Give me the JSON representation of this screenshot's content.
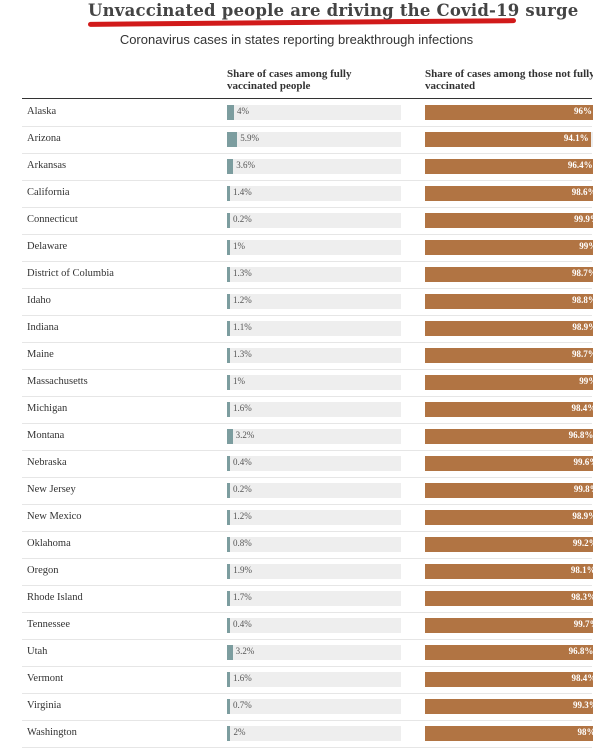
{
  "title": "Unvaccinated people are driving the Covid-19 surge",
  "subtitle": "Coronavirus cases in states reporting breakthrough infections",
  "colors": {
    "vaccinated": "#7c9d9f",
    "unvaccinated": "#b17443",
    "track": "#eeeeee",
    "title_underline": "#d11a1a"
  },
  "chart_data": {
    "type": "bar",
    "title": "Unvaccinated people are driving the Covid-19 surge",
    "subtitle": "Coronavirus cases in states reporting breakthrough infections",
    "orientation": "horizontal",
    "xlim": [
      0,
      100
    ],
    "categories": [
      "Alaska",
      "Arizona",
      "Arkansas",
      "California",
      "Connecticut",
      "Delaware",
      "District of Columbia",
      "Idaho",
      "Indiana",
      "Maine",
      "Massachusetts",
      "Michigan",
      "Montana",
      "Nebraska",
      "New Jersey",
      "New Mexico",
      "Oklahoma",
      "Oregon",
      "Rhode Island",
      "Tennessee",
      "Utah",
      "Vermont",
      "Virginia",
      "Washington"
    ],
    "series": [
      {
        "name": "Share of cases among fully vaccinated people",
        "values": [
          4,
          5.9,
          3.6,
          1.4,
          0.2,
          1,
          1.3,
          1.2,
          1.1,
          1.3,
          1,
          1.6,
          3.2,
          0.4,
          0.2,
          1.2,
          0.8,
          1.9,
          1.7,
          0.4,
          3.2,
          1.6,
          0.7,
          2
        ],
        "labels": [
          "4%",
          "5.9%",
          "3.6%",
          "1.4%",
          "0.2%",
          "1%",
          "1.3%",
          "1.2%",
          "1.1%",
          "1.3%",
          "1%",
          "1.6%",
          "3.2%",
          "0.4%",
          "0.2%",
          "1.2%",
          "0.8%",
          "1.9%",
          "1.7%",
          "0.4%",
          "3.2%",
          "1.6%",
          "0.7%",
          "2%"
        ]
      },
      {
        "name": "Share of cases among those not fully vaccinated",
        "values": [
          96,
          94.1,
          96.4,
          98.6,
          99.9,
          99,
          98.7,
          98.8,
          98.9,
          98.7,
          99,
          98.4,
          96.8,
          99.6,
          99.8,
          98.9,
          99.2,
          98.1,
          98.3,
          99.7,
          96.8,
          98.4,
          99.3,
          98
        ],
        "labels": [
          "96%",
          "94.1%",
          "96.4%",
          "98.6%",
          "99.9%",
          "99%",
          "98.7%",
          "98.8%",
          "98.9%",
          "98.7%",
          "99%",
          "98.4%",
          "96.8%",
          "99.6%",
          "99.8%",
          "98.9%",
          "99.2%",
          "98.1%",
          "98.3%",
          "99.7%",
          "96.8%",
          "98.4%",
          "99.3%",
          "98%"
        ]
      }
    ]
  },
  "columns": {
    "vaccinated_header": "Share of cases among fully vaccinated people",
    "unvaccinated_header": "Share of cases among those not fully vaccinated"
  }
}
